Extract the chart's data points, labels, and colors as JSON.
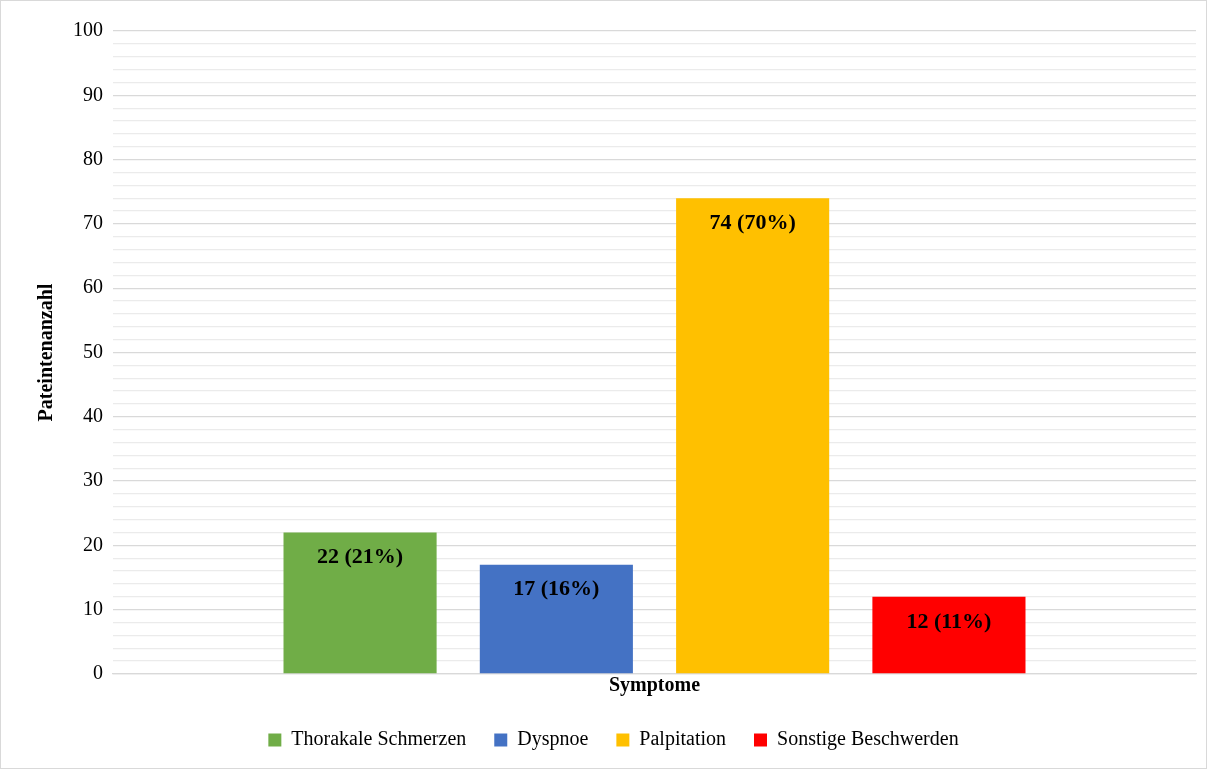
{
  "chart_data": {
    "type": "bar",
    "xlabel": "Symptome",
    "ylabel": "Pateintenanzahl",
    "categories": [
      null
    ],
    "series": [
      {
        "name": "Thorakale Schmerzen",
        "color": "#70ad47",
        "values": [
          22
        ],
        "value_labels": [
          "22 (21%)"
        ]
      },
      {
        "name": "Dyspnoe",
        "color": "#4472c4",
        "values": [
          17
        ],
        "value_labels": [
          "17 (16%)"
        ]
      },
      {
        "name": "Palpitation",
        "color": "#ffc000",
        "values": [
          74
        ],
        "value_labels": [
          "74 (70%)"
        ]
      },
      {
        "name": "Sonstige Beschwerden",
        "color": "#ff0000",
        "values": [
          12
        ],
        "value_labels": [
          "12 (11%)"
        ]
      }
    ],
    "ylim": [
      0,
      100
    ],
    "yticks": [
      0,
      {
        "value": 2,
        "label": null
      },
      {
        "value": 4,
        "label": null
      },
      {
        "value": 6,
        "label": null
      },
      {
        "value": 8,
        "label": null
      },
      10,
      {
        "value": 12,
        "label": null
      },
      {
        "value": 14,
        "label": null
      },
      {
        "value": 16,
        "label": null
      },
      {
        "value": 18,
        "label": null
      },
      20,
      {
        "value": 22,
        "label": null
      },
      {
        "value": 24,
        "label": null
      },
      {
        "value": 26,
        "label": null
      },
      {
        "value": 28,
        "label": null
      },
      30,
      {
        "value": 32,
        "label": null
      },
      {
        "value": 34,
        "label": null
      },
      {
        "value": 36,
        "label": null
      },
      {
        "value": 38,
        "label": null
      },
      40,
      {
        "value": 42,
        "label": null
      },
      {
        "value": 44,
        "label": null
      },
      {
        "value": 46,
        "label": null
      },
      {
        "value": 48,
        "label": null
      },
      50,
      {
        "value": 52,
        "label": null
      },
      {
        "value": 54,
        "label": null
      },
      {
        "value": 56,
        "label": null
      },
      {
        "value": 58,
        "label": null
      },
      60,
      {
        "value": 62,
        "label": null
      },
      {
        "value": 64,
        "label": null
      },
      {
        "value": 66,
        "label": null
      },
      {
        "value": 68,
        "label": null
      },
      70,
      {
        "value": 72,
        "label": null
      },
      {
        "value": 74,
        "label": null
      },
      {
        "value": 76,
        "label": null
      },
      {
        "value": 78,
        "label": null
      },
      80,
      {
        "value": 82,
        "label": null
      },
      {
        "value": 84,
        "label": null
      },
      {
        "value": 86,
        "label": null
      },
      {
        "value": 88,
        "label": null
      },
      90,
      {
        "value": 92,
        "label": null
      },
      {
        "value": 94,
        "label": null
      },
      {
        "value": 96,
        "label": null
      },
      {
        "value": 98,
        "label": null
      },
      100
    ],
    "grid": "y",
    "legend": "bottom"
  }
}
